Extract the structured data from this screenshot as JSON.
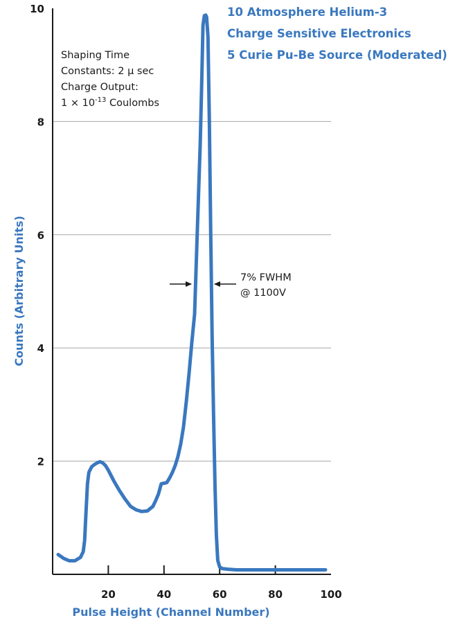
{
  "chart_data": {
    "type": "line",
    "title_lines": [
      "10 Atmosphere Helium-3",
      "Charge Sensitive Electronics",
      "5 Curie Pu-Be Source (Moderated)"
    ],
    "xlabel": "Pulse Height (Channel Number)",
    "ylabel": "Counts (Arbitrary Units)",
    "xlim": [
      0,
      100
    ],
    "ylim": [
      0,
      10
    ],
    "x_ticks": [
      20,
      40,
      60,
      80,
      100
    ],
    "y_ticks": [
      2,
      4,
      6,
      8,
      10
    ],
    "y_gridlines": [
      2,
      4,
      6,
      8
    ],
    "grid": "horizontal",
    "series_color": "#3a78bf",
    "series": [
      {
        "x": [
          2,
          4,
          6,
          8,
          10,
          11,
          11.5,
          12,
          12.5,
          13,
          14,
          15,
          16,
          17,
          18,
          19,
          20,
          22,
          24,
          26,
          28,
          30,
          32,
          34,
          36,
          37,
          38,
          39,
          40,
          41,
          42,
          43,
          44,
          45,
          46,
          47,
          48,
          49,
          50,
          51,
          52,
          53,
          53.5,
          54,
          54.5,
          55,
          55.3,
          55.8,
          56.3,
          56.8,
          57.3,
          57.8,
          58.3,
          58.8,
          59.3,
          60,
          61,
          63,
          66,
          70,
          80,
          90,
          98
        ],
        "y": [
          0.35,
          0.28,
          0.24,
          0.24,
          0.3,
          0.4,
          0.6,
          1.1,
          1.6,
          1.8,
          1.9,
          1.94,
          1.97,
          1.99,
          1.97,
          1.92,
          1.84,
          1.65,
          1.48,
          1.33,
          1.2,
          1.14,
          1.11,
          1.12,
          1.2,
          1.3,
          1.42,
          1.6,
          1.61,
          1.62,
          1.7,
          1.8,
          1.92,
          2.08,
          2.3,
          2.6,
          3.05,
          3.55,
          4.1,
          4.6,
          6.1,
          7.6,
          8.6,
          9.7,
          9.87,
          9.88,
          9.85,
          9.5,
          8.0,
          6.0,
          4.2,
          2.8,
          1.6,
          0.7,
          0.25,
          0.13,
          0.1,
          0.09,
          0.08,
          0.08,
          0.08,
          0.08,
          0.08
        ]
      }
    ],
    "conditions_text": {
      "line1": "Shaping Time",
      "line2": "Constants: 2 μ sec",
      "line3": "Charge Output:",
      "line4_prefix": "1 × 10",
      "line4_exp": "-13",
      "line4_suffix": " Coulombs"
    },
    "fwhm_annotation": {
      "line1": "7% FWHM",
      "line2": "@ 1100V"
    }
  }
}
